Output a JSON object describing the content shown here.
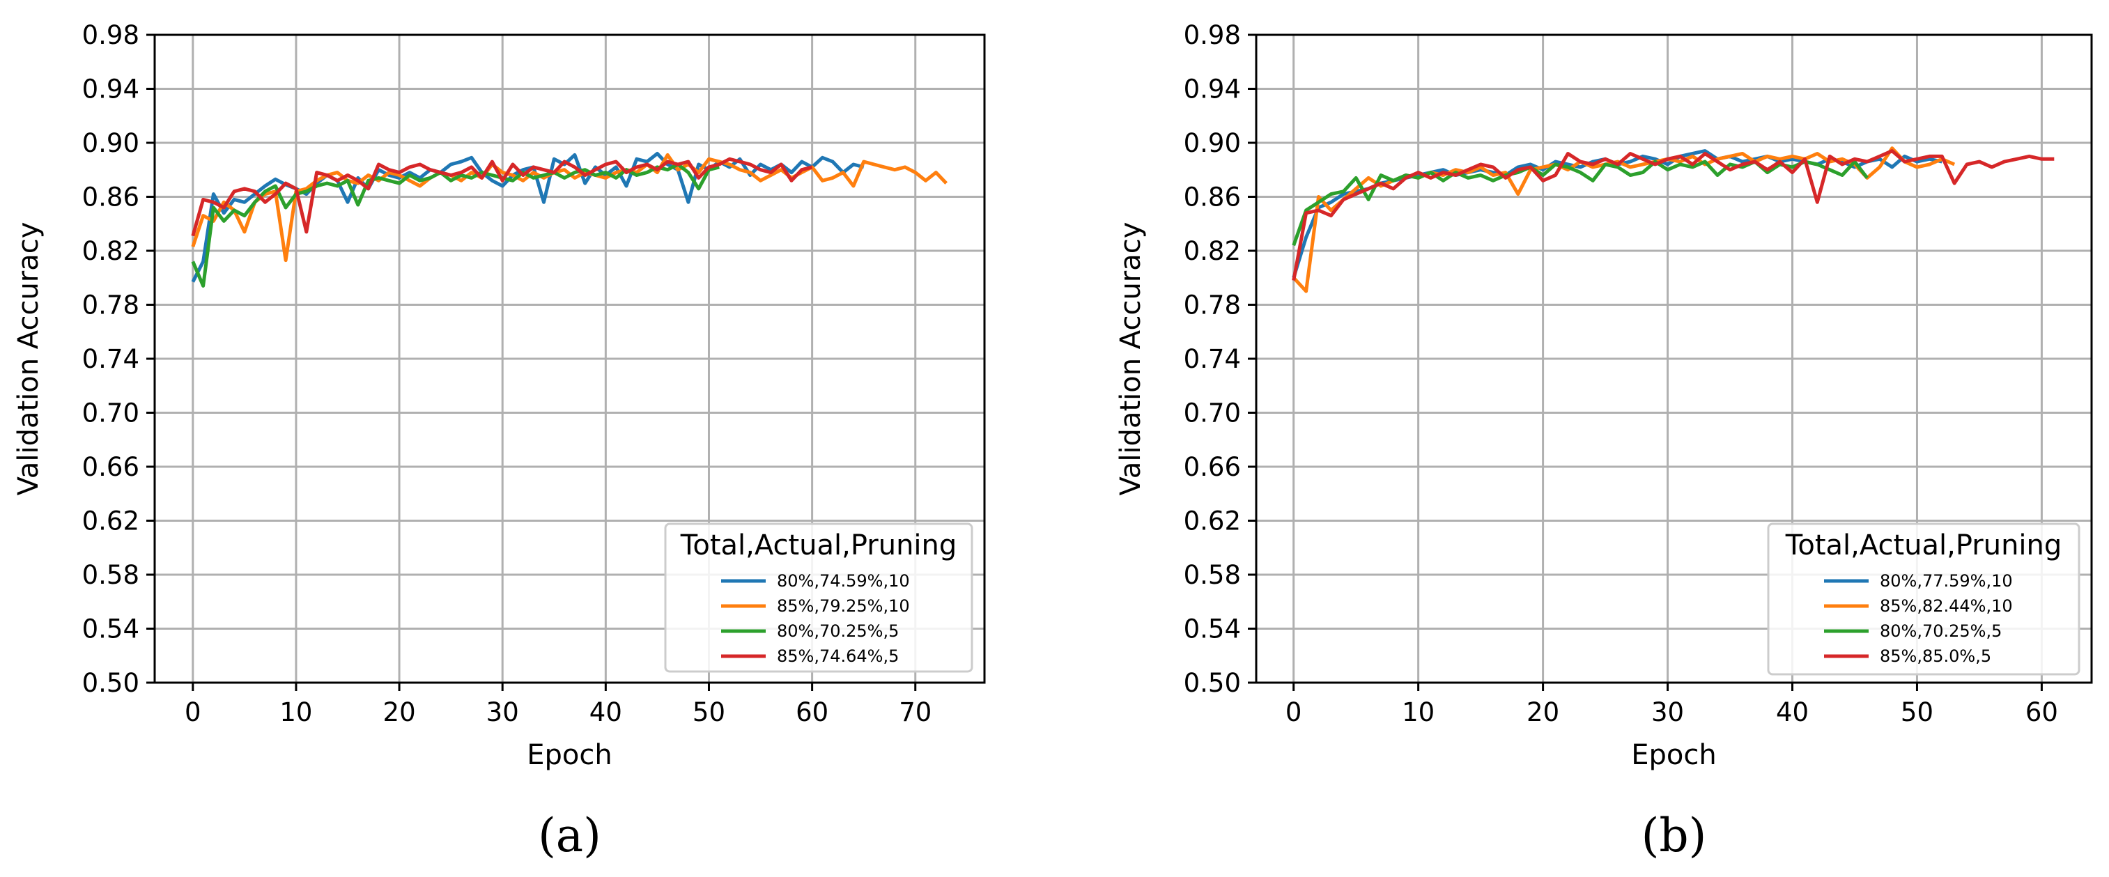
{
  "chart_data": [
    {
      "type": "line",
      "panel_label": "(a)",
      "xlabel": "Epoch",
      "ylabel": "Validation Accuracy",
      "xlim": [
        -3.7,
        76.7
      ],
      "ylim": [
        0.5,
        0.98
      ],
      "xticks": [
        "0",
        "10",
        "20",
        "30",
        "40",
        "50",
        "60",
        "70"
      ],
      "xtick_values": [
        0,
        10,
        20,
        30,
        40,
        50,
        60,
        70
      ],
      "yticks": [
        "0.50",
        "0.54",
        "0.58",
        "0.62",
        "0.66",
        "0.70",
        "0.74",
        "0.78",
        "0.82",
        "0.86",
        "0.90",
        "0.94",
        "0.98"
      ],
      "ytick_values": [
        0.5,
        0.54,
        0.58,
        0.62,
        0.66,
        0.7,
        0.74,
        0.78,
        0.82,
        0.86,
        0.9,
        0.94,
        0.98
      ],
      "grid": true,
      "legend": {
        "title": "Total,Actual,Pruning",
        "position": "lower-right"
      },
      "series": [
        {
          "name": "80%,74.59%,10",
          "color": "#1f77b4",
          "values": [
            0.797,
            0.812,
            0.862,
            0.848,
            0.858,
            0.856,
            0.862,
            0.868,
            0.873,
            0.869,
            0.866,
            0.862,
            0.87,
            0.876,
            0.872,
            0.856,
            0.874,
            0.866,
            0.88,
            0.876,
            0.874,
            0.878,
            0.874,
            0.88,
            0.878,
            0.884,
            0.886,
            0.889,
            0.878,
            0.872,
            0.868,
            0.876,
            0.88,
            0.882,
            0.856,
            0.888,
            0.884,
            0.891,
            0.87,
            0.882,
            0.876,
            0.882,
            0.868,
            0.888,
            0.886,
            0.892,
            0.884,
            0.88,
            0.856,
            0.884,
            0.88,
            0.886,
            0.882,
            0.888,
            0.876,
            0.884,
            0.88,
            0.884,
            0.878,
            0.886,
            0.882,
            0.889,
            0.886,
            0.878,
            0.884,
            0.882
          ]
        },
        {
          "name": "85%,79.25%,10",
          "color": "#ff7f0e",
          "values": [
            0.823,
            0.846,
            0.842,
            0.856,
            0.85,
            0.834,
            0.856,
            0.862,
            0.864,
            0.813,
            0.864,
            0.866,
            0.872,
            0.876,
            0.878,
            0.872,
            0.87,
            0.876,
            0.872,
            0.878,
            0.876,
            0.872,
            0.868,
            0.874,
            0.878,
            0.876,
            0.872,
            0.878,
            0.874,
            0.884,
            0.878,
            0.876,
            0.872,
            0.878,
            0.874,
            0.878,
            0.88,
            0.874,
            0.878,
            0.876,
            0.874,
            0.878,
            0.88,
            0.878,
            0.884,
            0.878,
            0.891,
            0.88,
            0.884,
            0.878,
            0.888,
            0.886,
            0.884,
            0.88,
            0.878,
            0.872,
            0.876,
            0.88,
            0.874,
            0.878,
            0.882,
            0.872,
            0.874,
            0.878,
            0.868,
            0.886,
            0.884,
            0.882,
            0.88,
            0.882,
            0.878,
            0.872,
            0.878,
            0.87
          ]
        },
        {
          "name": "80%,70.25%,5",
          "color": "#2ca02c",
          "values": [
            0.812,
            0.794,
            0.852,
            0.842,
            0.85,
            0.846,
            0.856,
            0.864,
            0.868,
            0.852,
            0.862,
            0.864,
            0.868,
            0.87,
            0.868,
            0.872,
            0.854,
            0.872,
            0.874,
            0.872,
            0.87,
            0.876,
            0.872,
            0.874,
            0.878,
            0.872,
            0.876,
            0.874,
            0.878,
            0.876,
            0.874,
            0.872,
            0.878,
            0.874,
            0.876,
            0.878,
            0.874,
            0.878,
            0.88,
            0.876,
            0.878,
            0.874,
            0.88,
            0.876,
            0.878,
            0.882,
            0.88,
            0.884,
            0.878,
            0.866,
            0.88,
            0.882
          ]
        },
        {
          "name": "85%,74.64%,5",
          "color": "#d62728",
          "values": [
            0.831,
            0.858,
            0.856,
            0.852,
            0.864,
            0.866,
            0.864,
            0.856,
            0.862,
            0.87,
            0.866,
            0.834,
            0.878,
            0.876,
            0.872,
            0.876,
            0.872,
            0.866,
            0.884,
            0.88,
            0.878,
            0.882,
            0.884,
            0.88,
            0.878,
            0.876,
            0.878,
            0.882,
            0.874,
            0.886,
            0.872,
            0.884,
            0.876,
            0.882,
            0.88,
            0.878,
            0.886,
            0.882,
            0.876,
            0.88,
            0.884,
            0.886,
            0.878,
            0.882,
            0.884,
            0.88,
            0.886,
            0.884,
            0.886,
            0.874,
            0.882,
            0.884,
            0.888,
            0.886,
            0.884,
            0.88,
            0.878,
            0.884,
            0.872,
            0.88,
            0.882
          ]
        }
      ]
    },
    {
      "type": "line",
      "panel_label": "(b)",
      "xlabel": "Epoch",
      "ylabel": "Validation Accuracy",
      "xlim": [
        -3.0,
        64.0
      ],
      "ylim": [
        0.5,
        0.98
      ],
      "xticks": [
        "0",
        "10",
        "20",
        "30",
        "40",
        "50",
        "60"
      ],
      "xtick_values": [
        0,
        10,
        20,
        30,
        40,
        50,
        60
      ],
      "yticks": [
        "0.50",
        "0.54",
        "0.58",
        "0.62",
        "0.66",
        "0.70",
        "0.74",
        "0.78",
        "0.82",
        "0.86",
        "0.90",
        "0.94",
        "0.98"
      ],
      "ytick_values": [
        0.5,
        0.54,
        0.58,
        0.62,
        0.66,
        0.7,
        0.74,
        0.78,
        0.82,
        0.86,
        0.9,
        0.94,
        0.98
      ],
      "grid": true,
      "legend": {
        "title": "Total,Actual,Pruning",
        "position": "lower-right"
      },
      "series": [
        {
          "name": "80%,77.59%,10",
          "color": "#1f77b4",
          "values": [
            0.8,
            0.83,
            0.852,
            0.856,
            0.862,
            0.864,
            0.866,
            0.87,
            0.872,
            0.874,
            0.876,
            0.878,
            0.88,
            0.876,
            0.878,
            0.88,
            0.878,
            0.876,
            0.882,
            0.884,
            0.88,
            0.886,
            0.884,
            0.882,
            0.886,
            0.888,
            0.884,
            0.886,
            0.89,
            0.888,
            0.884,
            0.89,
            0.892,
            0.894,
            0.888,
            0.89,
            0.886,
            0.888,
            0.89,
            0.886,
            0.888,
            0.886,
            0.884,
            0.888,
            0.886,
            0.882,
            0.886,
            0.888,
            0.882,
            0.89,
            0.886,
            0.888,
            0.886
          ]
        },
        {
          "name": "85%,82.44%,10",
          "color": "#ff7f0e",
          "values": [
            0.8,
            0.79,
            0.86,
            0.85,
            0.858,
            0.866,
            0.874,
            0.868,
            0.872,
            0.876,
            0.874,
            0.878,
            0.876,
            0.88,
            0.878,
            0.882,
            0.876,
            0.878,
            0.862,
            0.88,
            0.882,
            0.884,
            0.88,
            0.886,
            0.882,
            0.884,
            0.886,
            0.882,
            0.884,
            0.886,
            0.888,
            0.886,
            0.89,
            0.884,
            0.888,
            0.89,
            0.892,
            0.886,
            0.89,
            0.888,
            0.89,
            0.888,
            0.892,
            0.886,
            0.888,
            0.884,
            0.874,
            0.882,
            0.896,
            0.886,
            0.882,
            0.884,
            0.888,
            0.884
          ]
        },
        {
          "name": "80%,70.25%,5",
          "color": "#2ca02c",
          "values": [
            0.824,
            0.85,
            0.856,
            0.862,
            0.864,
            0.874,
            0.858,
            0.876,
            0.872,
            0.876,
            0.874,
            0.878,
            0.872,
            0.878,
            0.874,
            0.876,
            0.872,
            0.876,
            0.878,
            0.882,
            0.876,
            0.884,
            0.882,
            0.878,
            0.872,
            0.884,
            0.882,
            0.876,
            0.878,
            0.886,
            0.88,
            0.884,
            0.882,
            0.886,
            0.876,
            0.884,
            0.882,
            0.886,
            0.878,
            0.884,
            0.882,
            0.886,
            0.884,
            0.88,
            0.876,
            0.886,
            0.874
          ]
        },
        {
          "name": "85%,85.0%,5",
          "color": "#d62728",
          "values": [
            0.798,
            0.848,
            0.85,
            0.846,
            0.858,
            0.862,
            0.866,
            0.87,
            0.866,
            0.874,
            0.878,
            0.874,
            0.878,
            0.876,
            0.88,
            0.884,
            0.882,
            0.874,
            0.88,
            0.882,
            0.872,
            0.876,
            0.892,
            0.886,
            0.884,
            0.888,
            0.884,
            0.892,
            0.888,
            0.884,
            0.888,
            0.89,
            0.884,
            0.892,
            0.886,
            0.88,
            0.884,
            0.886,
            0.88,
            0.886,
            0.878,
            0.888,
            0.856,
            0.89,
            0.884,
            0.888,
            0.886,
            0.89,
            0.894,
            0.886,
            0.888,
            0.89,
            0.89,
            0.87,
            0.884,
            0.886,
            0.882,
            0.886,
            0.888,
            0.89,
            0.888,
            0.888
          ]
        }
      ]
    }
  ]
}
